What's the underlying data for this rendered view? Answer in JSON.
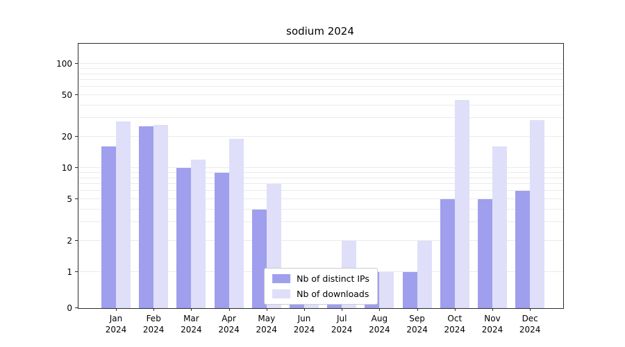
{
  "chart_data": {
    "type": "bar",
    "title": "sodium 2024",
    "categories": [
      "Jan",
      "Feb",
      "Mar",
      "Apr",
      "May",
      "Jun",
      "Jul",
      "Aug",
      "Sep",
      "Oct",
      "Nov",
      "Dec"
    ],
    "category_year": "2024",
    "series": [
      {
        "name": "Nb of distinct IPs",
        "color": "#9f9fee",
        "values": [
          16,
          25,
          10,
          9,
          4,
          1,
          1,
          1,
          1,
          5,
          5,
          6
        ]
      },
      {
        "name": "Nb of downloads",
        "color": "#dfdffa",
        "values": [
          28,
          26,
          12,
          19,
          7,
          1,
          2,
          1,
          2,
          45,
          16,
          29
        ]
      }
    ],
    "y_scale": "symlog",
    "y_ticks": [
      0,
      1,
      2,
      5,
      10,
      20,
      50,
      100
    ],
    "y_minor_gridlines": [
      1,
      2,
      3,
      4,
      5,
      6,
      7,
      8,
      9,
      10,
      20,
      30,
      40,
      50,
      60,
      70,
      80,
      90,
      100
    ],
    "ylim": [
      0,
      160
    ],
    "grid": true,
    "legend_position": "lower center"
  }
}
